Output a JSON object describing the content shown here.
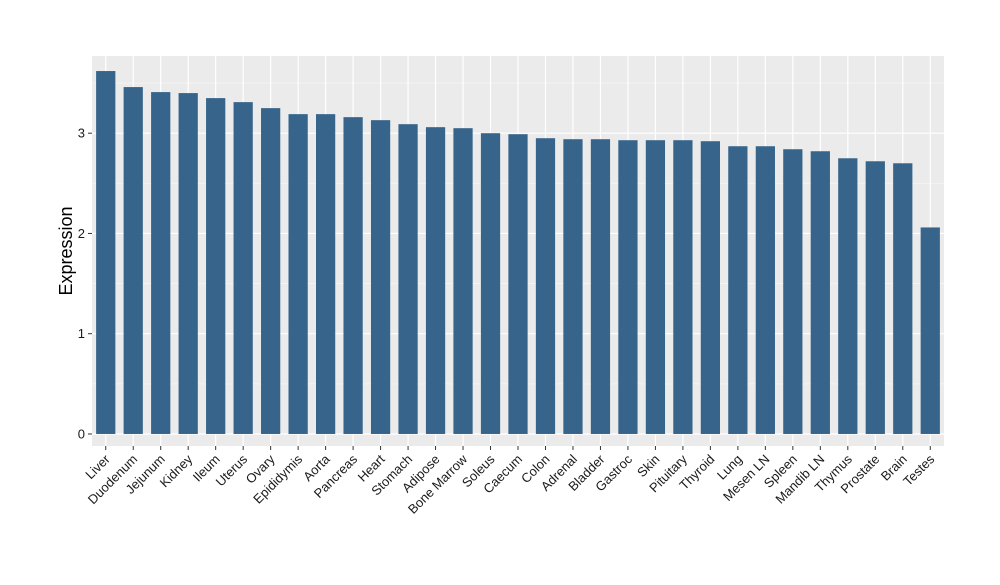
{
  "colors": {
    "panel_background": "#EBEBEB",
    "grid_major": "#FFFFFF",
    "grid_minor": "#F5F5F5",
    "bar_fill": "#36648B",
    "tick_mark": "#333333"
  },
  "chart_data": {
    "type": "bar",
    "title": "",
    "xlabel": "",
    "ylabel": "Expression",
    "ylim": [
      -0.12,
      3.77
    ],
    "yticks": [
      0,
      1,
      2,
      3
    ],
    "ytick_labels": [
      "0",
      "1",
      "2",
      "3"
    ],
    "grid": true,
    "legend": "none",
    "categories": [
      "Liver",
      "Duodenum",
      "Jejunum",
      "Kidney",
      "Ileum",
      "Uterus",
      "Ovary",
      "Epididymis",
      "Aorta",
      "Pancreas",
      "Heart",
      "Stomach",
      "Adipose",
      "Bone Marrow",
      "Soleus",
      "Caecum",
      "Colon",
      "Adrenal",
      "Bladder",
      "Gastroc",
      "Skin",
      "Pituitary",
      "Thyroid",
      "Lung",
      "Mesen LN",
      "Spleen",
      "Mandib LN",
      "Thymus",
      "Prostate",
      "Brain",
      "Testes"
    ],
    "values": [
      3.62,
      3.46,
      3.41,
      3.4,
      3.35,
      3.31,
      3.25,
      3.19,
      3.19,
      3.16,
      3.13,
      3.09,
      3.06,
      3.05,
      3.0,
      2.99,
      2.95,
      2.94,
      2.94,
      2.93,
      2.93,
      2.93,
      2.92,
      2.87,
      2.87,
      2.84,
      2.82,
      2.75,
      2.72,
      2.7,
      2.06
    ]
  }
}
